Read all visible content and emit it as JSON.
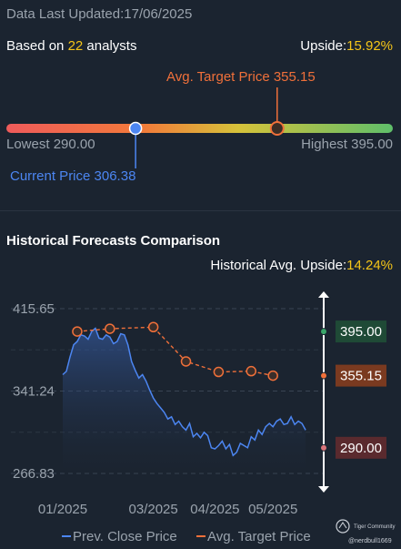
{
  "header": {
    "last_updated_label": "Data Last Updated:",
    "last_updated_value": "17/06/2025",
    "based_on_prefix": "Based on",
    "analyst_count": "22",
    "based_on_suffix": "analysts",
    "upside_label": "Upside:",
    "upside_value": "15.92%"
  },
  "range_bar": {
    "avg_target_label": "Avg. Target Price 355.15",
    "lowest_label": "Lowest 290.00",
    "highest_label": "Highest 395.00",
    "current_label": "Current Price 306.38",
    "low": 290.0,
    "high": 395.0,
    "current": 306.38,
    "avg_target": 355.15
  },
  "historical": {
    "title": "Historical Forecasts Comparison",
    "avg_upside_label": "Historical Avg. Upside:",
    "avg_upside_value": "14.24%"
  },
  "chart_data": {
    "type": "line",
    "ylim": [
      266.83,
      415.65
    ],
    "y_ticks": [
      "415.65",
      "341.24",
      "266.83"
    ],
    "y_tick_values": [
      415.65,
      341.24,
      266.83
    ],
    "x_ticks": [
      "01/2025",
      "03/2025",
      "04/2025",
      "05/2025"
    ],
    "x_tick_positions": [
      0.0,
      2.5,
      4.2,
      5.8
    ],
    "x_range": [
      -0.05,
      7.2
    ],
    "series": [
      {
        "name": "Prev. Close Price",
        "color": "#4c86f2",
        "x": [
          0.0,
          0.1,
          0.2,
          0.3,
          0.4,
          0.5,
          0.6,
          0.7,
          0.8,
          0.9,
          1.0,
          1.1,
          1.2,
          1.3,
          1.4,
          1.5,
          1.6,
          1.7,
          1.8,
          1.9,
          2.0,
          2.1,
          2.2,
          2.3,
          2.4,
          2.5,
          2.6,
          2.7,
          2.8,
          2.9,
          3.0,
          3.1,
          3.2,
          3.3,
          3.4,
          3.5,
          3.6,
          3.7,
          3.8,
          3.9,
          4.0,
          4.1,
          4.2,
          4.3,
          4.4,
          4.5,
          4.6,
          4.7,
          4.8,
          4.9,
          5.0,
          5.1,
          5.2,
          5.3,
          5.4,
          5.5,
          5.6,
          5.7,
          5.8,
          5.9,
          6.0,
          6.1,
          6.2,
          6.3,
          6.4,
          6.5,
          6.6,
          6.7
        ],
        "values": [
          356,
          359,
          372,
          383,
          386,
          392,
          391,
          388,
          395,
          398,
          389,
          388,
          392,
          390,
          384,
          386,
          393,
          392,
          383,
          368,
          360,
          353,
          356,
          350,
          342,
          335,
          330,
          326,
          322,
          316,
          318,
          311,
          314,
          309,
          306,
          312,
          300,
          303,
          299,
          304,
          301,
          290,
          289,
          292,
          296,
          289,
          293,
          283,
          286,
          294,
          292,
          290,
          300,
          297,
          306,
          302,
          309,
          312,
          309,
          314,
          316,
          311,
          312,
          318,
          311,
          314,
          312,
          306
        ]
      },
      {
        "name": "Avg. Target Price",
        "color": "#f0703a",
        "x": [
          0.4,
          1.3,
          2.5,
          3.4,
          4.3,
          5.2,
          5.8
        ],
        "values": [
          395.0,
          397.5,
          399.0,
          368.0,
          358.5,
          359.2,
          355.15
        ]
      }
    ],
    "markers": [
      {
        "label": "395.00",
        "value": 395.0,
        "color": "#1f4a36",
        "dot": "#3aa66a"
      },
      {
        "label": "355.15",
        "value": 355.15,
        "color": "#7a3a20",
        "dot": "#f0703a"
      },
      {
        "label": "290.00",
        "value": 290.0,
        "color": "#5a2a2e",
        "dot": "#d9747a"
      }
    ],
    "legend": [
      "Prev. Close Price",
      "Avg. Target Price"
    ],
    "legend_position": "bottom",
    "grid": true
  },
  "watermark": {
    "brand": "Tiger Community",
    "user": "@nerdbull1669"
  }
}
